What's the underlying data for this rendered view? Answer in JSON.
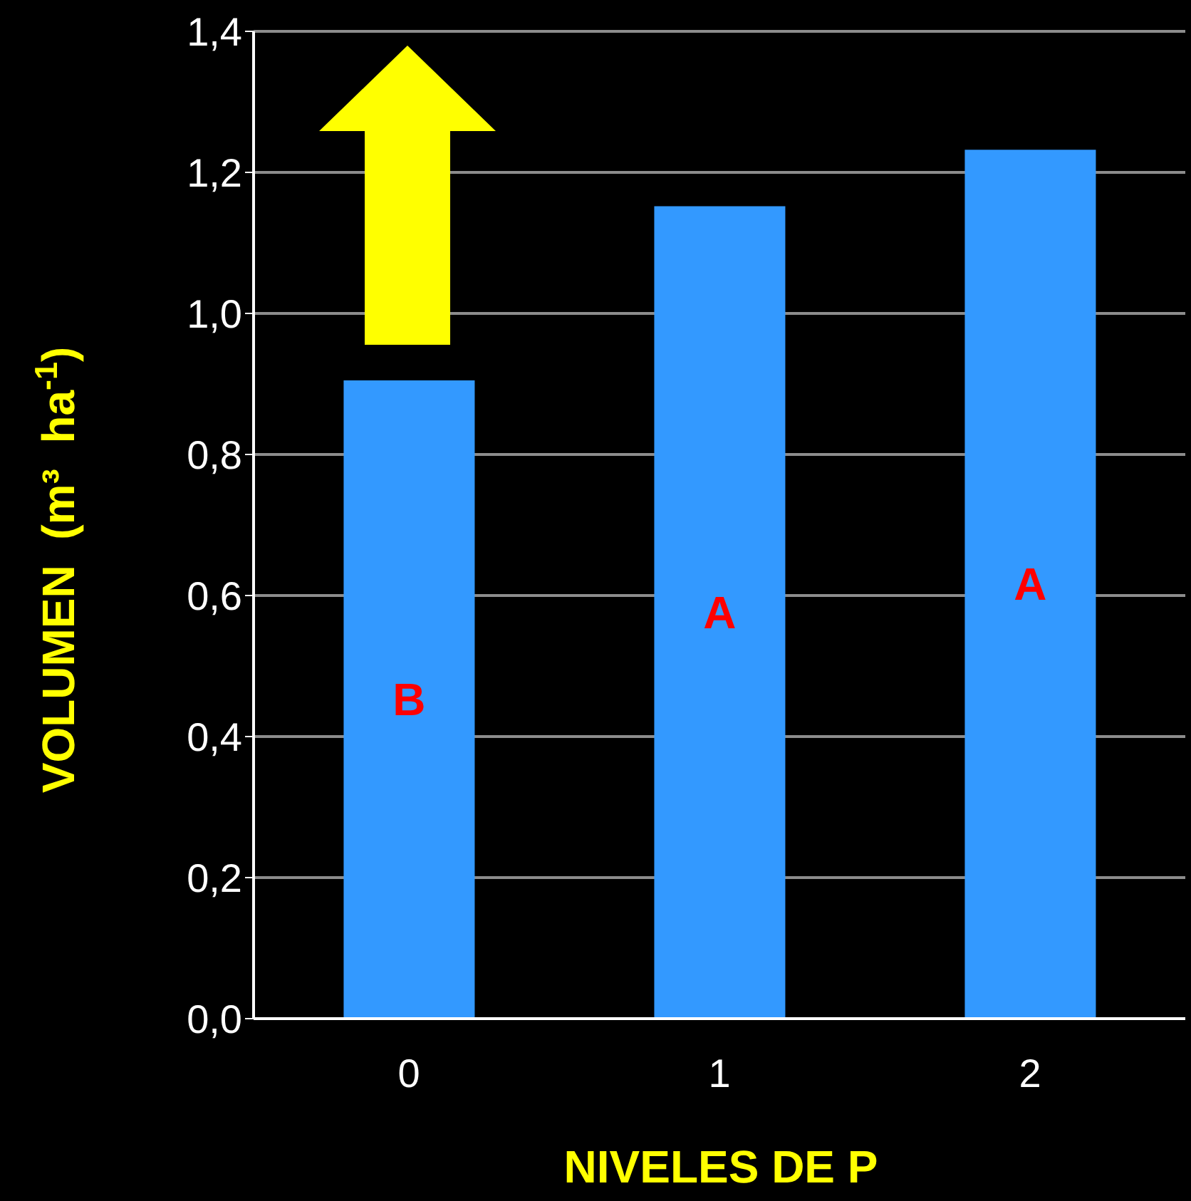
{
  "chart_data": {
    "type": "bar",
    "xlabel": "NIVELES DE P",
    "ylabel": "VOLUMEN  (m³  ha$^{-1}$)",
    "categories": [
      "0",
      "1",
      "2"
    ],
    "values": [
      0.905,
      1.152,
      1.232
    ],
    "color": "#3399ff",
    "ylim": [
      0,
      1.4
    ],
    "yticks": [
      {
        "value": 0,
        "label": "0,0"
      },
      {
        "value": 0.2,
        "label": "0,2"
      },
      {
        "value": 0.4,
        "label": "0,4"
      },
      {
        "value": 0.6,
        "label": "0,6"
      },
      {
        "value": 0.8,
        "label": "0,8"
      },
      {
        "value": 1,
        "label": "1,0"
      },
      {
        "value": 1.2,
        "label": "1,2"
      },
      {
        "value": 1.4,
        "label": "1,4"
      }
    ],
    "grid": "y",
    "annotations": [
      "B",
      "A",
      "A"
    ]
  }
}
